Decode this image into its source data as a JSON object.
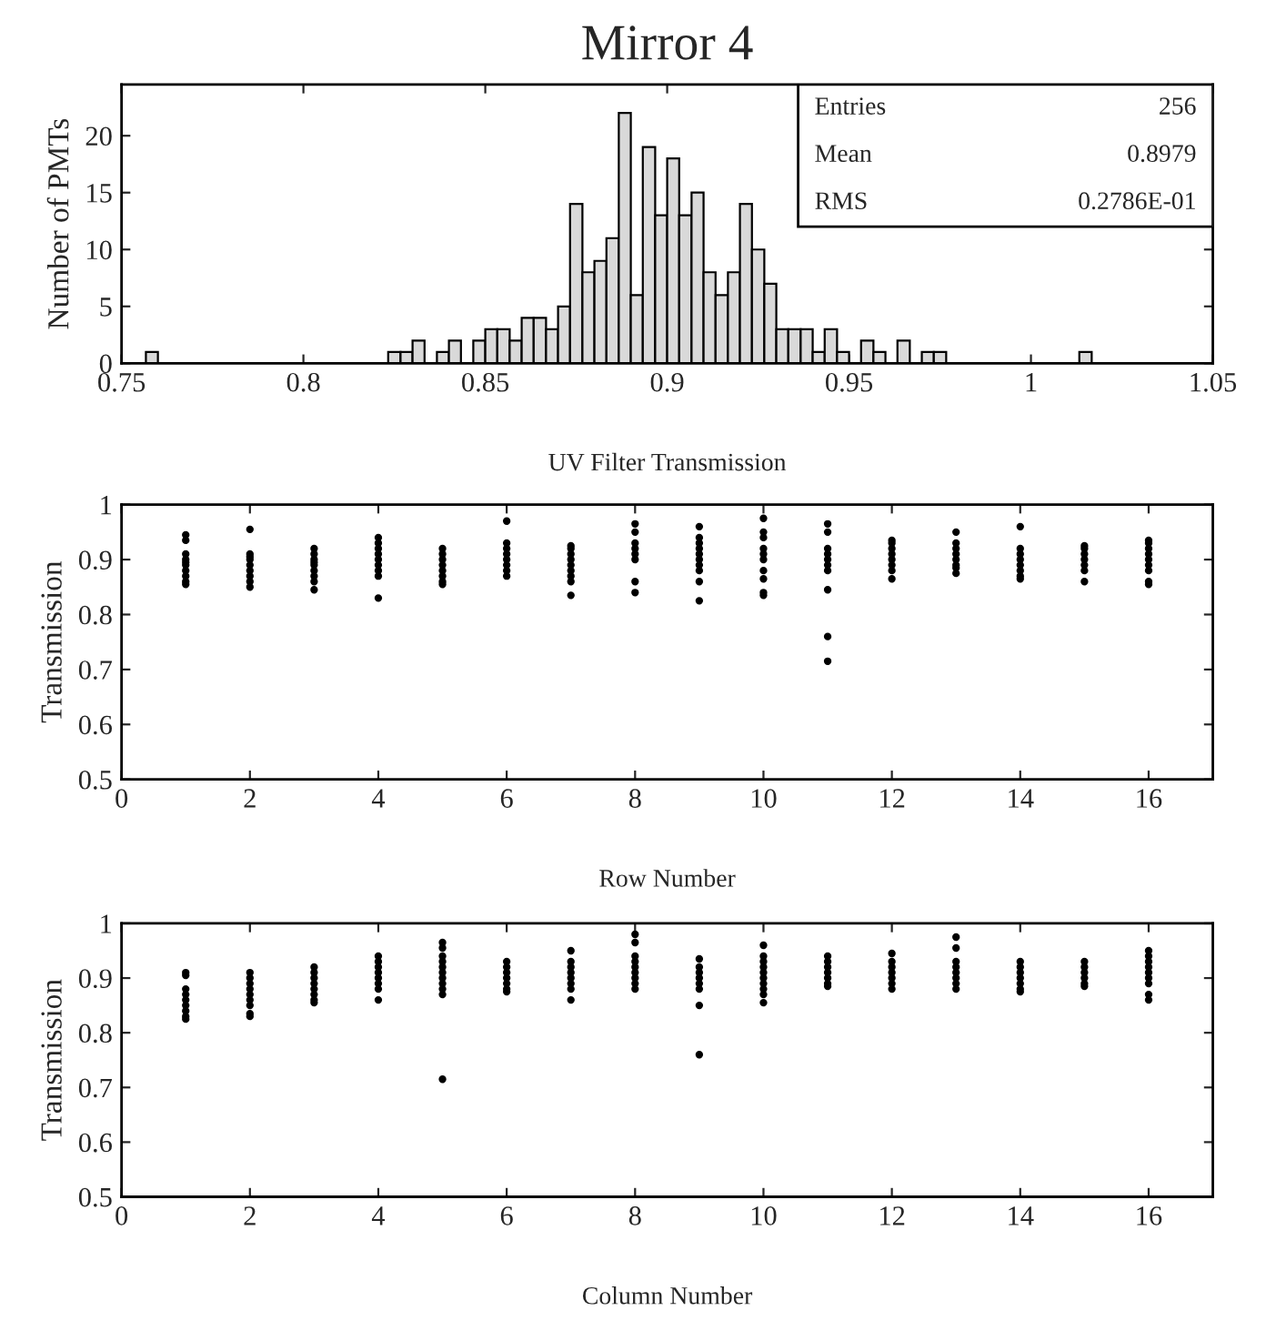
{
  "chart_data": [
    {
      "type": "histogram",
      "title": "Mirror 4",
      "xlabel": "UV Filter Transmission",
      "ylabel": "Number of PMTs",
      "color": "#d9d9d9",
      "bins": [
        0.75,
        0.7533,
        0.7567,
        0.76,
        0.7633,
        0.7667,
        0.77,
        0.7733,
        0.7767,
        0.78,
        0.7833,
        0.7867,
        0.79,
        0.7933,
        0.7967,
        0.8,
        0.8033,
        0.8067,
        0.81,
        0.8133,
        0.8167,
        0.82,
        0.8233,
        0.8267,
        0.83,
        0.8333,
        0.8367,
        0.84,
        0.8433,
        0.8467,
        0.85,
        0.8533,
        0.8567,
        0.86,
        0.8633,
        0.8667,
        0.87,
        0.8733,
        0.8767,
        0.88,
        0.8833,
        0.8867,
        0.89,
        0.8933,
        0.8967,
        0.9,
        0.9033,
        0.9067,
        0.91,
        0.9133,
        0.9167,
        0.92,
        0.9233,
        0.9267,
        0.93,
        0.9333,
        0.9367,
        0.94,
        0.9433,
        0.9467,
        0.95,
        0.9533,
        0.9567,
        0.96,
        0.9633,
        0.9667,
        0.97,
        0.9733,
        0.9767,
        0.98,
        0.9833,
        0.9867,
        0.99,
        0.9933,
        0.9967,
        1.0,
        1.0033,
        1.0067,
        1.01,
        1.0133,
        1.0167,
        1.02,
        1.0233,
        1.0267,
        1.03,
        1.0333,
        1.0367,
        1.04,
        1.0433,
        1.0467,
        1.05
      ],
      "values": [
        0,
        0,
        1,
        0,
        0,
        0,
        0,
        0,
        0,
        0,
        0,
        0,
        0,
        0,
        0,
        0,
        0,
        0,
        0,
        0,
        0,
        0,
        1,
        1,
        2,
        0,
        1,
        2,
        0,
        2,
        3,
        3,
        2,
        4,
        4,
        3,
        5,
        14,
        8,
        9,
        11,
        22,
        6,
        19,
        13,
        18,
        13,
        15,
        8,
        6,
        8,
        14,
        10,
        7,
        3,
        3,
        3,
        1,
        3,
        1,
        0,
        2,
        1,
        0,
        2,
        0,
        1,
        1,
        0,
        0,
        0,
        0,
        0,
        0,
        0,
        0,
        0,
        0,
        0,
        1,
        0,
        0,
        0,
        0,
        0,
        0,
        0,
        0,
        0,
        0
      ],
      "xlim": [
        0.75,
        1.05
      ],
      "xticks": [
        0.75,
        0.8,
        0.85,
        0.9,
        0.95,
        {
          "value": 1,
          "label": "1"
        },
        1.05
      ],
      "ylim": [
        0,
        24.5
      ],
      "yticks": [
        0,
        5,
        10,
        15,
        20
      ],
      "annotations": [
        "Entries",
        "256",
        "Mean",
        "0.8979",
        "RMS",
        "0.2786E-01"
      ]
    },
    {
      "type": "scatter",
      "xlabel": "Row Number",
      "ylabel": "Transmission",
      "color": "#000000",
      "marker": "circle",
      "x": [
        1,
        1,
        1,
        1,
        1,
        1,
        1,
        1,
        1,
        1,
        2,
        2,
        2,
        2,
        2,
        2,
        2,
        2,
        2,
        3,
        3,
        3,
        3,
        3,
        3,
        3,
        3,
        3,
        4,
        4,
        4,
        4,
        4,
        4,
        4,
        4,
        4,
        5,
        5,
        5,
        5,
        5,
        5,
        5,
        5,
        6,
        6,
        6,
        6,
        6,
        6,
        6,
        6,
        7,
        7,
        7,
        7,
        7,
        7,
        7,
        7,
        7,
        8,
        8,
        8,
        8,
        8,
        8,
        8,
        8,
        9,
        9,
        9,
        9,
        9,
        9,
        9,
        9,
        9,
        9,
        10,
        10,
        10,
        10,
        10,
        10,
        10,
        10,
        10,
        10,
        11,
        11,
        11,
        11,
        11,
        11,
        11,
        11,
        11,
        11,
        12,
        12,
        12,
        12,
        12,
        12,
        12,
        12,
        13,
        13,
        13,
        13,
        13,
        13,
        13,
        13,
        14,
        14,
        14,
        14,
        14,
        14,
        14,
        14,
        15,
        15,
        15,
        15,
        15,
        15,
        15,
        16,
        16,
        16,
        16,
        16,
        16,
        16,
        16,
        16
      ],
      "values": [
        0.945,
        0.935,
        0.91,
        0.9,
        0.895,
        0.89,
        0.88,
        0.87,
        0.86,
        0.855,
        0.955,
        0.91,
        0.905,
        0.9,
        0.89,
        0.88,
        0.87,
        0.86,
        0.85,
        0.92,
        0.91,
        0.9,
        0.895,
        0.89,
        0.88,
        0.87,
        0.86,
        0.845,
        0.94,
        0.93,
        0.92,
        0.91,
        0.9,
        0.89,
        0.88,
        0.87,
        0.83,
        0.92,
        0.91,
        0.9,
        0.89,
        0.88,
        0.87,
        0.86,
        0.855,
        0.97,
        0.93,
        0.92,
        0.91,
        0.9,
        0.89,
        0.88,
        0.87,
        0.925,
        0.92,
        0.91,
        0.9,
        0.89,
        0.88,
        0.87,
        0.86,
        0.835,
        0.965,
        0.95,
        0.93,
        0.92,
        0.91,
        0.9,
        0.86,
        0.84,
        0.96,
        0.94,
        0.93,
        0.92,
        0.91,
        0.9,
        0.89,
        0.88,
        0.86,
        0.825,
        0.975,
        0.95,
        0.94,
        0.92,
        0.91,
        0.9,
        0.88,
        0.865,
        0.84,
        0.835,
        0.965,
        0.95,
        0.92,
        0.91,
        0.9,
        0.89,
        0.88,
        0.845,
        0.76,
        0.715,
        0.935,
        0.93,
        0.92,
        0.91,
        0.9,
        0.89,
        0.88,
        0.865,
        0.95,
        0.93,
        0.92,
        0.91,
        0.9,
        0.89,
        0.885,
        0.875,
        0.96,
        0.92,
        0.91,
        0.9,
        0.89,
        0.88,
        0.87,
        0.865,
        0.925,
        0.92,
        0.91,
        0.9,
        0.89,
        0.88,
        0.86,
        0.935,
        0.93,
        0.92,
        0.91,
        0.9,
        0.89,
        0.88,
        0.86,
        0.855
      ],
      "xlim": [
        0,
        17
      ],
      "xticks": [
        0,
        2,
        4,
        6,
        8,
        10,
        12,
        14,
        16
      ],
      "ylim": [
        0.5,
        1
      ],
      "yticks": [
        0.5,
        0.6,
        0.7,
        0.8,
        0.9,
        {
          "value": 1,
          "label": "1"
        }
      ]
    },
    {
      "type": "scatter",
      "xlabel": "Column Number",
      "ylabel": "Transmission",
      "color": "#000000",
      "marker": "circle",
      "x": [
        1,
        1,
        1,
        1,
        1,
        1,
        1,
        1,
        1,
        2,
        2,
        2,
        2,
        2,
        2,
        2,
        2,
        2,
        3,
        3,
        3,
        3,
        3,
        3,
        3,
        3,
        4,
        4,
        4,
        4,
        4,
        4,
        4,
        4,
        5,
        5,
        5,
        5,
        5,
        5,
        5,
        5,
        5,
        5,
        5,
        6,
        6,
        6,
        6,
        6,
        6,
        6,
        7,
        7,
        7,
        7,
        7,
        7,
        7,
        7,
        8,
        8,
        8,
        8,
        8,
        8,
        8,
        8,
        8,
        9,
        9,
        9,
        9,
        9,
        9,
        9,
        9,
        10,
        10,
        10,
        10,
        10,
        10,
        10,
        10,
        10,
        10,
        11,
        11,
        11,
        11,
        11,
        11,
        11,
        12,
        12,
        12,
        12,
        12,
        12,
        12,
        13,
        13,
        13,
        13,
        13,
        13,
        13,
        13,
        14,
        14,
        14,
        14,
        14,
        14,
        14,
        15,
        15,
        15,
        15,
        15,
        15,
        16,
        16,
        16,
        16,
        16,
        16,
        16,
        16,
        16
      ],
      "values": [
        0.91,
        0.905,
        0.88,
        0.87,
        0.86,
        0.85,
        0.84,
        0.83,
        0.825,
        0.91,
        0.9,
        0.89,
        0.88,
        0.87,
        0.86,
        0.85,
        0.835,
        0.83,
        0.92,
        0.91,
        0.9,
        0.89,
        0.88,
        0.87,
        0.86,
        0.855,
        0.94,
        0.93,
        0.92,
        0.91,
        0.9,
        0.89,
        0.88,
        0.86,
        0.965,
        0.955,
        0.94,
        0.93,
        0.92,
        0.91,
        0.9,
        0.89,
        0.88,
        0.87,
        0.715,
        0.93,
        0.92,
        0.91,
        0.9,
        0.89,
        0.88,
        0.875,
        0.95,
        0.93,
        0.92,
        0.91,
        0.9,
        0.89,
        0.88,
        0.86,
        0.98,
        0.965,
        0.94,
        0.93,
        0.92,
        0.91,
        0.9,
        0.89,
        0.88,
        0.935,
        0.92,
        0.91,
        0.9,
        0.89,
        0.88,
        0.85,
        0.76,
        0.96,
        0.94,
        0.93,
        0.92,
        0.91,
        0.9,
        0.89,
        0.88,
        0.87,
        0.855,
        0.94,
        0.93,
        0.92,
        0.91,
        0.9,
        0.89,
        0.885,
        0.945,
        0.93,
        0.92,
        0.91,
        0.9,
        0.89,
        0.88,
        0.975,
        0.955,
        0.93,
        0.92,
        0.91,
        0.9,
        0.89,
        0.88,
        0.93,
        0.92,
        0.91,
        0.9,
        0.89,
        0.88,
        0.875,
        0.93,
        0.92,
        0.91,
        0.9,
        0.89,
        0.885,
        0.95,
        0.94,
        0.93,
        0.92,
        0.91,
        0.9,
        0.89,
        0.87,
        0.86
      ],
      "xlim": [
        0,
        17
      ],
      "xticks": [
        0,
        2,
        4,
        6,
        8,
        10,
        12,
        14,
        16
      ],
      "ylim": [
        0.5,
        1
      ],
      "yticks": [
        0.5,
        0.6,
        0.7,
        0.8,
        0.9,
        {
          "value": 1,
          "label": "1"
        }
      ]
    }
  ]
}
